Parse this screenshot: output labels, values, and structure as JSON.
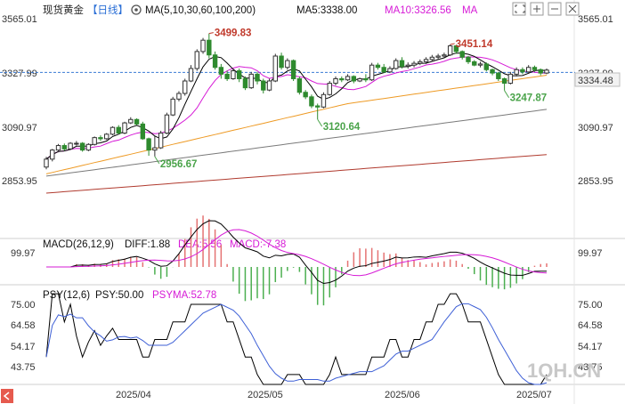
{
  "header": {
    "instrument": "现货黄金",
    "period_tab": "【日线】",
    "ma_label": "MA(5,10,30,60,100,200)",
    "ma5_label": "MA5:3338.00",
    "ma10_label": "MA10:3326.56",
    "ma_more": "MA"
  },
  "macd_header": {
    "label": "MACD(26,12,9)",
    "diff": "DIFF:1.88",
    "dea": "DEA:5.56",
    "macd": "MACD:-7.38"
  },
  "psy_header": {
    "label": "PSY(12,6)",
    "psy": "PSY:50.00",
    "psyma": "PSYMA:52.78"
  },
  "watermark": "1QH.CN",
  "colors": {
    "up": "#333333",
    "down": "#2e8a2e",
    "ma5": "#000000",
    "ma10": "#d61ad6",
    "ma30": "#ee9a24",
    "ma60": "#7a7a7a",
    "ma100": "#b03a2e",
    "annotation_high": "#c0392b",
    "annotation_low": "#4aa34a",
    "macd_neg": "#4caf50",
    "macd_pos": "#e57373",
    "dea": "#d61ad6",
    "price_tag": "#f2f2f2"
  },
  "chart_data": [
    {
      "type": "candlestick",
      "title": "现货黄金 日线",
      "y_ticks": [
        "3565.01",
        "3327.99",
        "3090.97",
        "2853.95"
      ],
      "ylim": [
        2780,
        3610
      ],
      "x_ticks": [
        "2025/04",
        "2025/05",
        "2025/06",
        "2025/07"
      ],
      "annotations": [
        {
          "label": "3499.83",
          "value": 3499.83,
          "kind": "high"
        },
        {
          "label": "3451.14",
          "value": 3451.14,
          "kind": "high"
        },
        {
          "label": "3120.64",
          "value": 3120.64,
          "kind": "low"
        },
        {
          "label": "3247.87",
          "value": 3247.87,
          "kind": "low"
        },
        {
          "label": "2956.67",
          "value": 2956.67,
          "kind": "low"
        }
      ],
      "current_price": "3334.48",
      "reference_line": 3327.99,
      "candles": [
        [
          2910,
          2945,
          2900,
          2955
        ],
        [
          2945,
          2985,
          2935,
          2990
        ],
        [
          2985,
          3005,
          2975,
          3012
        ],
        [
          3005,
          2990,
          2982,
          3014
        ],
        [
          2990,
          3015,
          2985,
          3020
        ],
        [
          3015,
          3015,
          3005,
          3025
        ],
        [
          3015,
          2985,
          2978,
          3020
        ],
        [
          2985,
          3010,
          2980,
          3015
        ],
        [
          3010,
          3040,
          3005,
          3045
        ],
        [
          3040,
          3035,
          3025,
          3050
        ],
        [
          3035,
          3055,
          3030,
          3060
        ],
        [
          3055,
          3085,
          3050,
          3090
        ],
        [
          3085,
          3060,
          3055,
          3095
        ],
        [
          3060,
          3105,
          3055,
          3110
        ],
        [
          3105,
          3120,
          3100,
          3130
        ],
        [
          3120,
          3100,
          3095,
          3125
        ],
        [
          3100,
          3035,
          3030,
          3110
        ],
        [
          3035,
          2985,
          2960,
          3040
        ],
        [
          2985,
          2995,
          2956.67,
          3050
        ],
        [
          2995,
          3060,
          2990,
          3070
        ],
        [
          3060,
          3140,
          3055,
          3150
        ],
        [
          3140,
          3210,
          3135,
          3220
        ],
        [
          3210,
          3235,
          3200,
          3245
        ],
        [
          3235,
          3290,
          3225,
          3300
        ],
        [
          3290,
          3345,
          3285,
          3360
        ],
        [
          3345,
          3420,
          3335,
          3430
        ],
        [
          3420,
          3470,
          3410,
          3480
        ],
        [
          3470,
          3405,
          3390,
          3499.83
        ],
        [
          3405,
          3350,
          3340,
          3420
        ],
        [
          3350,
          3320,
          3300,
          3365
        ],
        [
          3320,
          3300,
          3290,
          3335
        ],
        [
          3300,
          3335,
          3295,
          3345
        ],
        [
          3335,
          3300,
          3285,
          3345
        ],
        [
          3300,
          3260,
          3250,
          3310
        ],
        [
          3260,
          3320,
          3255,
          3330
        ],
        [
          3320,
          3290,
          3275,
          3330
        ],
        [
          3290,
          3250,
          3235,
          3300
        ],
        [
          3250,
          3290,
          3245,
          3300
        ],
        [
          3290,
          3400,
          3285,
          3410
        ],
        [
          3400,
          3350,
          3340,
          3415
        ],
        [
          3350,
          3380,
          3340,
          3390
        ],
        [
          3380,
          3300,
          3290,
          3385
        ],
        [
          3300,
          3240,
          3230,
          3310
        ],
        [
          3240,
          3220,
          3210,
          3250
        ],
        [
          3220,
          3180,
          3170,
          3230
        ],
        [
          3180,
          3175,
          3120.64,
          3190
        ],
        [
          3175,
          3230,
          3170,
          3240
        ],
        [
          3230,
          3280,
          3225,
          3290
        ],
        [
          3280,
          3300,
          3270,
          3310
        ],
        [
          3300,
          3295,
          3285,
          3310
        ],
        [
          3295,
          3310,
          3290,
          3320
        ],
        [
          3310,
          3290,
          3280,
          3315
        ],
        [
          3290,
          3300,
          3285,
          3305
        ],
        [
          3300,
          3295,
          3285,
          3320
        ],
        [
          3295,
          3360,
          3290,
          3370
        ],
        [
          3360,
          3350,
          3340,
          3370
        ],
        [
          3350,
          3330,
          3325,
          3365
        ],
        [
          3330,
          3345,
          3325,
          3355
        ],
        [
          3345,
          3380,
          3340,
          3390
        ],
        [
          3380,
          3355,
          3345,
          3395
        ],
        [
          3355,
          3360,
          3345,
          3372
        ],
        [
          3360,
          3368,
          3350,
          3378
        ],
        [
          3368,
          3375,
          3360,
          3385
        ],
        [
          3375,
          3385,
          3365,
          3395
        ],
        [
          3385,
          3395,
          3375,
          3405
        ],
        [
          3395,
          3400,
          3385,
          3410
        ],
        [
          3400,
          3405,
          3390,
          3415
        ],
        [
          3405,
          3445,
          3400,
          3451.14
        ],
        [
          3445,
          3420,
          3410,
          3450
        ],
        [
          3420,
          3395,
          3385,
          3425
        ],
        [
          3395,
          3375,
          3365,
          3400
        ],
        [
          3375,
          3360,
          3355,
          3382
        ],
        [
          3360,
          3365,
          3350,
          3375
        ],
        [
          3365,
          3340,
          3332,
          3372
        ],
        [
          3340,
          3325,
          3315,
          3345
        ],
        [
          3325,
          3300,
          3290,
          3330
        ],
        [
          3300,
          3280,
          3247.87,
          3305
        ],
        [
          3280,
          3320,
          3275,
          3330
        ],
        [
          3320,
          3340,
          3310,
          3350
        ],
        [
          3340,
          3330,
          3320,
          3350
        ],
        [
          3330,
          3350,
          3325,
          3360
        ],
        [
          3350,
          3340,
          3330,
          3358
        ],
        [
          3340,
          3325,
          3315,
          3345
        ],
        [
          3325,
          3338,
          3320,
          3345
        ]
      ]
    },
    {
      "type": "bar",
      "title": "MACD(26,12,9)",
      "y_ticks": [
        "99.97"
      ],
      "series_names": [
        "DIFF",
        "DEA",
        "MACD"
      ],
      "diff_last": 1.88,
      "dea_last": 5.56,
      "macd_last": -7.38
    },
    {
      "type": "line",
      "title": "PSY(12,6)",
      "y_ticks": [
        "75.00",
        "64.58",
        "54.17",
        "43.75"
      ],
      "ylim": [
        37,
        80
      ],
      "psy_last": 50.0,
      "psyma_last": 52.78
    }
  ]
}
